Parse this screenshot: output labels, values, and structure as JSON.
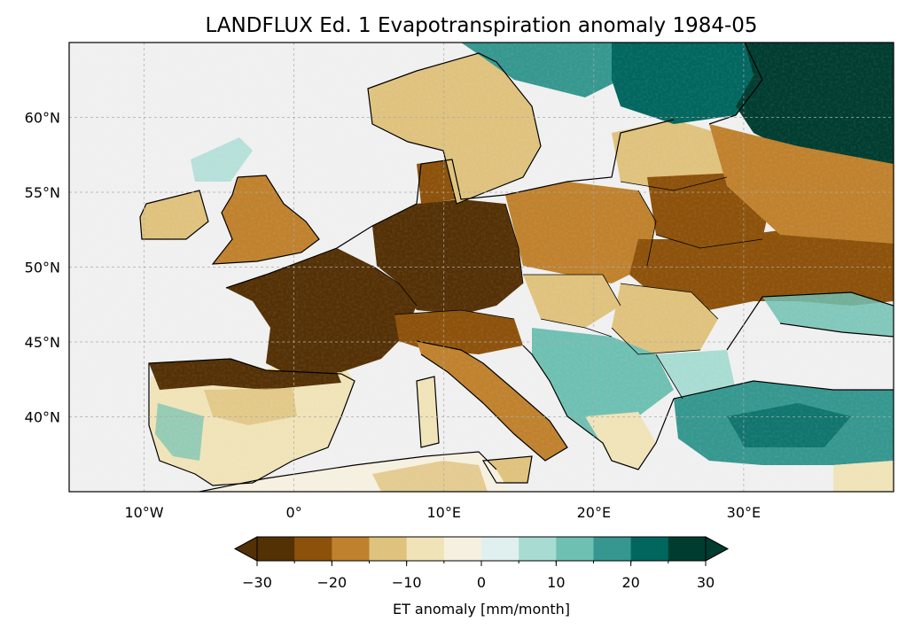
{
  "title": "LANDFLUX Ed. 1 Evapotranspiration anomaly 1984-05",
  "map": {
    "extent": {
      "lon": [
        -15,
        40
      ],
      "lat": [
        35,
        65
      ]
    },
    "lat_ticks": [
      {
        "value": 40,
        "label": "40°N"
      },
      {
        "value": 45,
        "label": "45°N"
      },
      {
        "value": 50,
        "label": "50°N"
      },
      {
        "value": 55,
        "label": "55°N"
      },
      {
        "value": 60,
        "label": "60°N"
      }
    ],
    "lon_ticks": [
      {
        "value": -10,
        "label": "10°W"
      },
      {
        "value": 0,
        "label": "0°"
      },
      {
        "value": 10,
        "label": "10°E"
      },
      {
        "value": 20,
        "label": "20°E"
      },
      {
        "value": 30,
        "label": "30°E"
      }
    ],
    "gridlines": true,
    "ocean_color": "#f0f0f0",
    "coastline_color": "#000000"
  },
  "colorbar": {
    "label": "ET anomaly [mm/month]",
    "min": -30,
    "max": 30,
    "step": 5,
    "extend": "both",
    "ticks": [
      {
        "value": -30,
        "label": "−30"
      },
      {
        "value": -20,
        "label": "−20"
      },
      {
        "value": -10,
        "label": "−10"
      },
      {
        "value": 0,
        "label": "0"
      },
      {
        "value": 10,
        "label": "10"
      },
      {
        "value": 20,
        "label": "20"
      },
      {
        "value": 30,
        "label": "30"
      }
    ],
    "colors": [
      "#543005",
      "#8c510a",
      "#bf812d",
      "#dfc27d",
      "#f0e3b8",
      "#f5f0e0",
      "#dff0ee",
      "#a8dcd3",
      "#6ec0b2",
      "#35978f",
      "#01665e",
      "#003c30"
    ]
  },
  "regions": [
    {
      "name": "France",
      "anomaly": -30
    },
    {
      "name": "Germany",
      "anomaly": -30
    },
    {
      "name": "Iberia north",
      "anomaly": -25
    },
    {
      "name": "Iberia south",
      "anomaly": 5
    },
    {
      "name": "British Isles",
      "anomaly": -12
    },
    {
      "name": "Scandinavia south",
      "anomaly": -10
    },
    {
      "name": "Scandinavia north",
      "anomaly": 12
    },
    {
      "name": "Poland",
      "anomaly": -15
    },
    {
      "name": "Italy",
      "anomaly": -15
    },
    {
      "name": "Balkans",
      "anomaly": 10
    },
    {
      "name": "Turkey",
      "anomaly": 20
    },
    {
      "name": "Ukraine",
      "anomaly": -22
    },
    {
      "name": "Russia north",
      "anomaly": 30
    },
    {
      "name": "Finland",
      "anomaly": 20
    },
    {
      "name": "North Africa",
      "anomaly": -5
    }
  ]
}
